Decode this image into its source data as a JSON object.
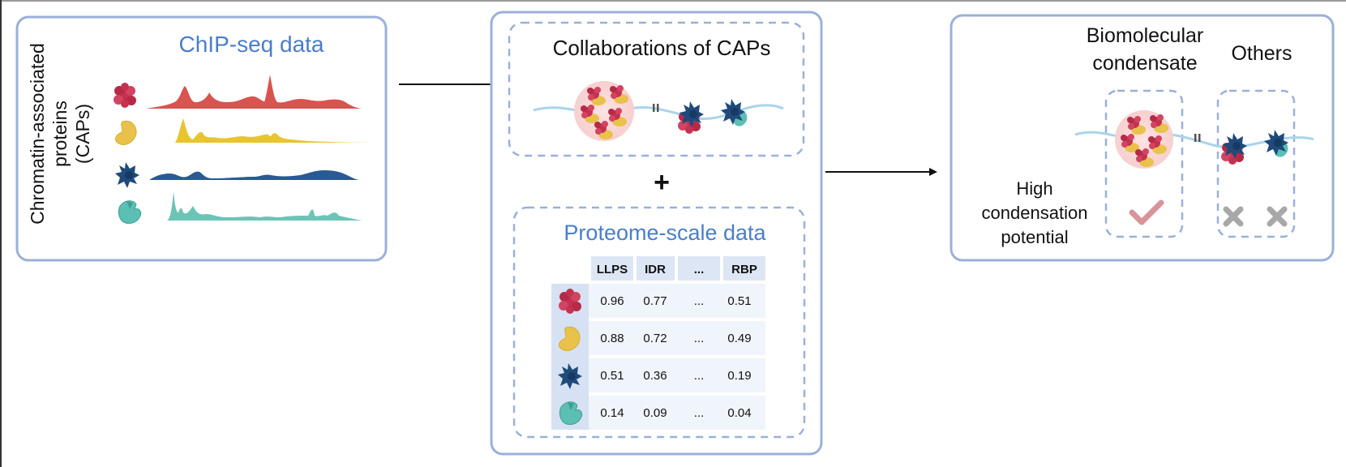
{
  "panel_left": {
    "title": "ChIP-seq data",
    "vertical_label_lines": [
      "Chromatin-associated",
      "proteins",
      "(CAPs)"
    ]
  },
  "panel_middle": {
    "collab_title": "Collaborations of CAPs",
    "plus_sign": "+",
    "proteome_title": "Proteome-scale data",
    "table": {
      "headers": [
        "LLPS",
        "IDR",
        "...",
        "RBP"
      ],
      "rows": [
        {
          "protein_icon": "red-protein-icon",
          "values": [
            "0.96",
            "0.77",
            "...",
            "0.51"
          ]
        },
        {
          "protein_icon": "yellow-protein-icon",
          "values": [
            "0.88",
            "0.72",
            "...",
            "0.49"
          ]
        },
        {
          "protein_icon": "navy-protein-icon",
          "values": [
            "0.51",
            "0.36",
            "...",
            "0.19"
          ]
        },
        {
          "protein_icon": "teal-protein-icon",
          "values": [
            "0.14",
            "0.09",
            "...",
            "0.04"
          ]
        }
      ]
    }
  },
  "panel_right": {
    "condensate_label_lines": [
      "Biomolecular",
      "condensate"
    ],
    "others_label": "Others",
    "potential_label_lines": [
      "High",
      "condensation",
      "potential"
    ],
    "check_icon": "check-icon",
    "cross_icon": "cross-icon"
  },
  "colors": {
    "panel_border": "#9bb0d8",
    "title_blue": "#4a7ec8",
    "red_protein": "#c4324f",
    "yellow_protein": "#e8c24a",
    "navy_protein": "#1f4a7a",
    "teal_protein": "#5bbfb4",
    "red_track": "#d9534f",
    "yellow_track": "#e8c530",
    "navy_track": "#2a5a93",
    "teal_track": "#6cc4b6",
    "dna": "#a9d4ea",
    "check": "#d8949b",
    "cross": "#a8a8a8"
  }
}
